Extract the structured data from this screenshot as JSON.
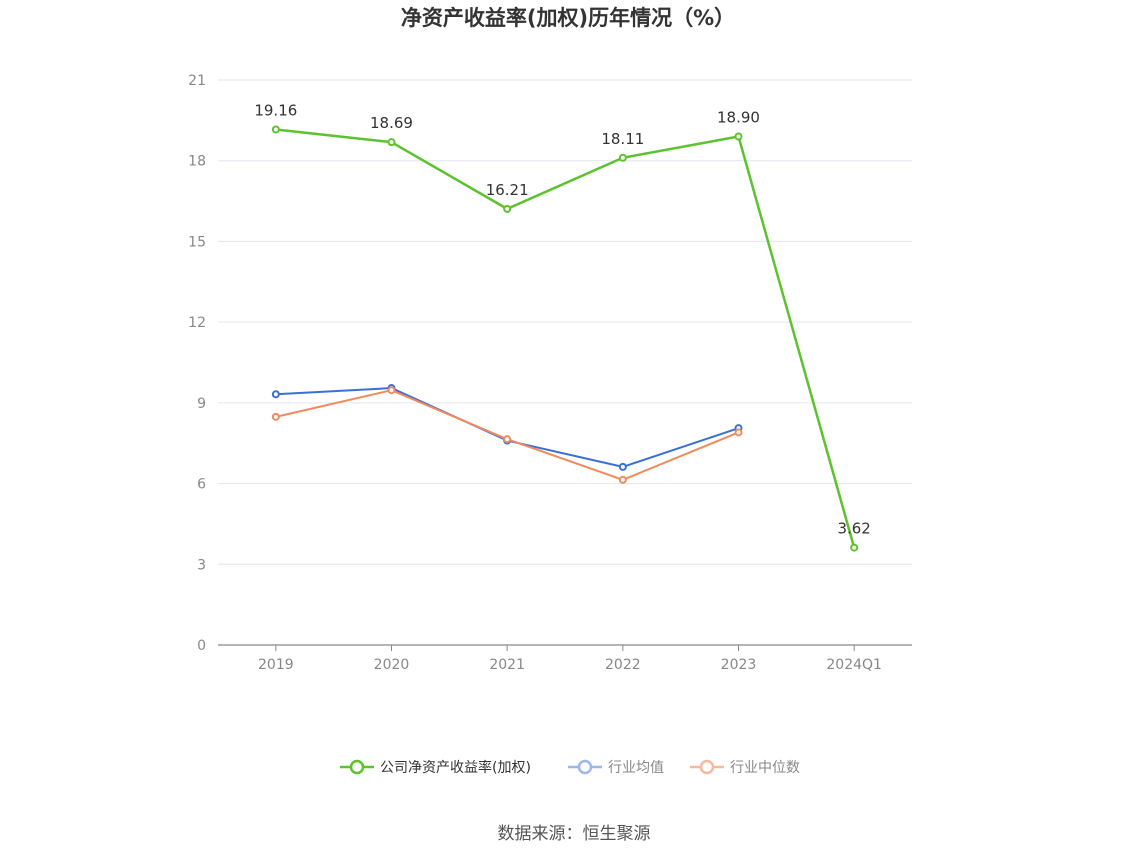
{
  "chart_data": {
    "type": "line",
    "title": "净资产收益率(加权)历年情况（%）",
    "categories": [
      "2019",
      "2020",
      "2021",
      "2022",
      "2023",
      "2024Q1"
    ],
    "ylim": [
      0,
      21
    ],
    "yticks": [
      0,
      3,
      6,
      9,
      12,
      15,
      18,
      21
    ],
    "grid": true,
    "legend_position": "bottom",
    "series": [
      {
        "name": "公司净资产收益率(加权)",
        "color": "#5cc22e",
        "values": [
          19.16,
          18.69,
          16.21,
          18.11,
          18.9,
          3.62
        ],
        "labels": [
          "19.16",
          "18.69",
          "16.21",
          "18.11",
          "18.90",
          "3.62"
        ]
      },
      {
        "name": "行业均值",
        "color": "#3a6fd8",
        "values": [
          9.32,
          9.55,
          7.6,
          6.62,
          8.06,
          null
        ]
      },
      {
        "name": "行业中位数",
        "color": "#f08a5d",
        "values": [
          8.48,
          9.47,
          7.65,
          6.14,
          7.9,
          null
        ]
      }
    ],
    "legend_colors": [
      "#5cc22e",
      "#9bb8ec",
      "#f6b9a0"
    ],
    "source": "数据来源：恒生聚源"
  }
}
